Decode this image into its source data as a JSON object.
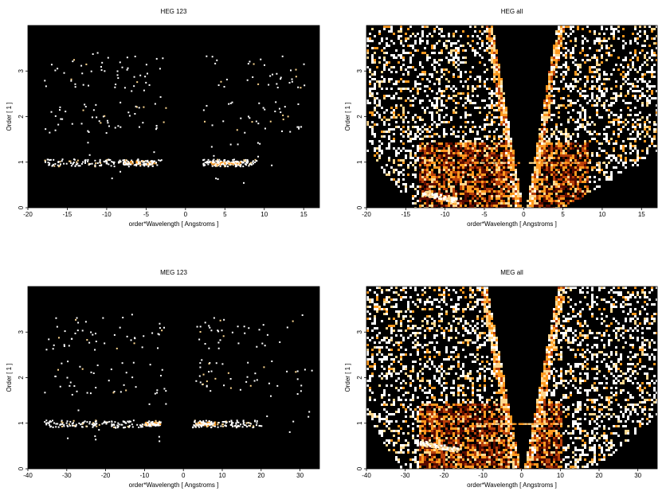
{
  "chart_data": [
    {
      "type": "heatmap",
      "title": "HEG 123",
      "xlabel": "order*Wavelength [ Angstroms ]",
      "ylabel": "Order [ 1 ]",
      "xlim": [
        -20,
        17
      ],
      "ylim": [
        0,
        4
      ],
      "xticks": [
        -20,
        -15,
        -10,
        -5,
        0,
        5,
        10,
        15
      ],
      "yticks": [
        0,
        1,
        2,
        3
      ],
      "background": "#000000",
      "pattern": "sparse",
      "bands": [
        {
          "order": 1,
          "x": [
            -18,
            -3,
            2,
            9
          ],
          "density": "high"
        },
        {
          "order": 2,
          "x": [
            -18,
            -2,
            2,
            15
          ],
          "density": "low"
        },
        {
          "order": 3,
          "x": [
            -18,
            -3,
            3,
            15
          ],
          "density": "low"
        }
      ]
    },
    {
      "type": "heatmap",
      "title": "HEG all",
      "xlabel": "order*Wavelength [ Angstroms ]",
      "ylabel": "Order [ 1 ]",
      "xlim": [
        -20,
        17
      ],
      "ylim": [
        0,
        4
      ],
      "xticks": [
        -20,
        -15,
        -10,
        -5,
        0,
        5,
        10,
        15
      ],
      "yticks": [
        0,
        1,
        2,
        3
      ],
      "background": "#000000",
      "pattern": "dense"
    },
    {
      "type": "heatmap",
      "title": "MEG 123",
      "xlabel": "order*Wavelength [ Angstroms ]",
      "ylabel": "Order [ 1 ]",
      "xlim": [
        -40,
        35
      ],
      "ylim": [
        0,
        4
      ],
      "xticks": [
        -40,
        -30,
        -20,
        -10,
        0,
        10,
        20,
        30
      ],
      "yticks": [
        0,
        1,
        2,
        3
      ],
      "background": "#000000",
      "pattern": "sparse",
      "bands": [
        {
          "order": 1,
          "x": [
            -36,
            -6,
            2,
            20
          ],
          "density": "high"
        },
        {
          "order": 2,
          "x": [
            -36,
            -4,
            3,
            32
          ],
          "density": "low"
        },
        {
          "order": 3,
          "x": [
            -36,
            -4,
            3,
            32
          ],
          "density": "low"
        }
      ]
    },
    {
      "type": "heatmap",
      "title": "MEG all",
      "xlabel": "order*Wavelength [ Angstroms ]",
      "ylabel": "Order [ 1 ]",
      "xlim": [
        -40,
        35
      ],
      "ylim": [
        0,
        4
      ],
      "xticks": [
        -40,
        -30,
        -20,
        -10,
        0,
        10,
        20,
        30
      ],
      "yticks": [
        0,
        1,
        2,
        3
      ],
      "background": "#000000",
      "pattern": "dense"
    }
  ],
  "colors": {
    "background": "#000000",
    "heat_dark": "#5a0c00",
    "heat_mid": "#b8400a",
    "heat_orange": "#ff9a20",
    "heat_light": "#ffd890",
    "heat_white": "#ffffff"
  }
}
